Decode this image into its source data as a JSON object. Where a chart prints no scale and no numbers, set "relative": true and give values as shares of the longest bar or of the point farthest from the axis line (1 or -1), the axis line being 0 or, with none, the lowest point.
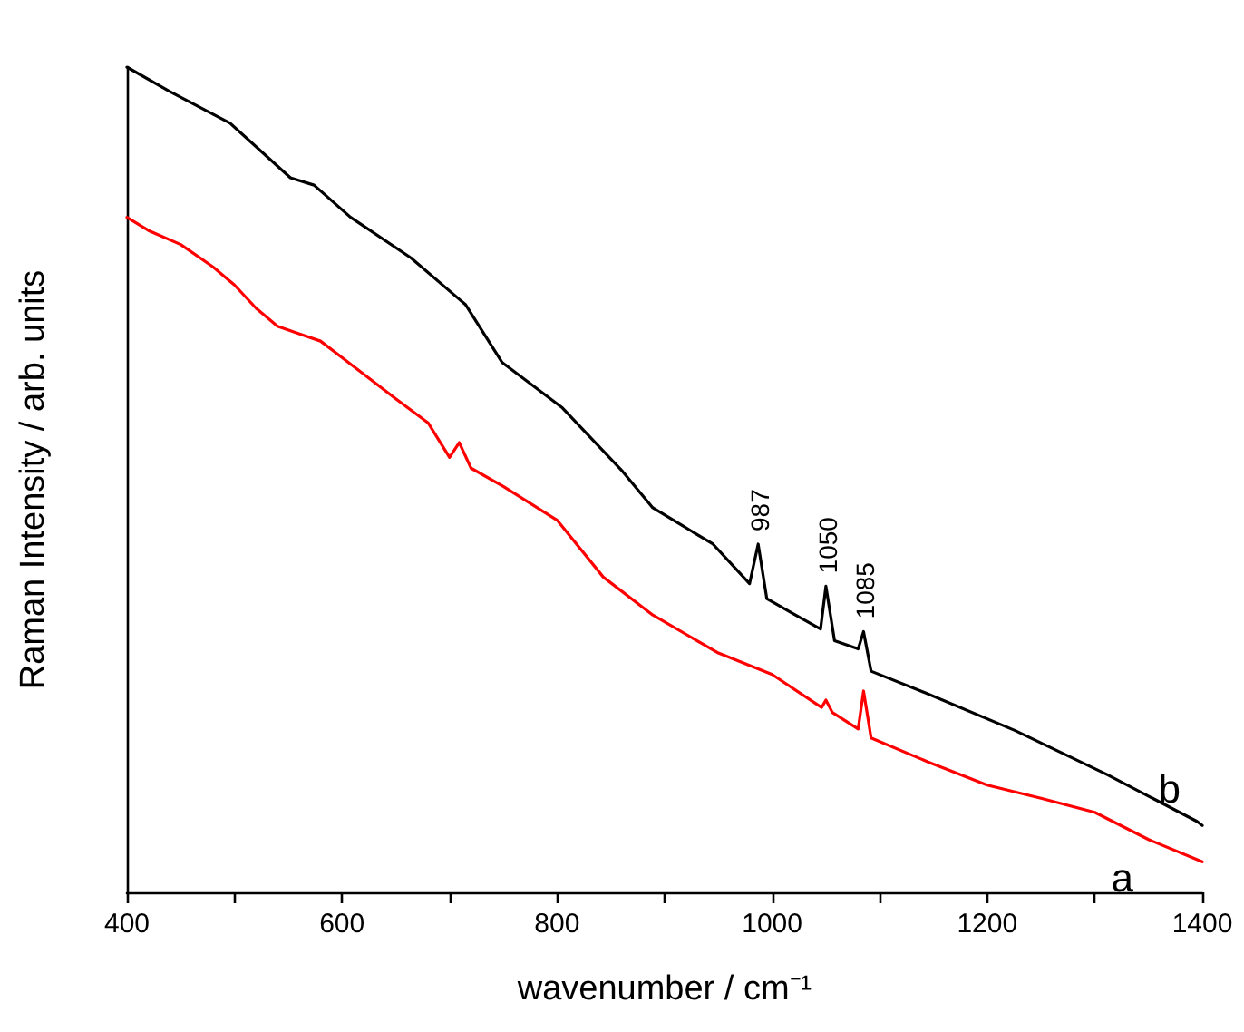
{
  "chart_data": {
    "type": "line",
    "relative": true,
    "xlabel": "wavenumber / cm⁻¹",
    "ylabel": "Raman Intensity / arb. units",
    "xlim": [
      400,
      1400
    ],
    "xticks": [
      400,
      {
        "value": 500,
        "label": null
      },
      600,
      {
        "value": 700,
        "label": null
      },
      800,
      {
        "value": 900,
        "label": null
      },
      1000,
      {
        "value": 1100,
        "label": null
      },
      1200,
      {
        "value": 1300,
        "label": null
      },
      1400
    ],
    "grid": false,
    "legend": false,
    "marker": "none",
    "line_style": "solid",
    "series": [
      {
        "name": "a",
        "color": "#ff0000",
        "x": [
          400,
          420,
          450,
          480,
          500,
          520,
          540,
          560,
          580,
          600,
          650,
          680,
          700,
          709,
          720,
          750,
          800,
          843,
          889,
          950,
          1000,
          1046,
          1050,
          1056,
          1080,
          1085,
          1092,
          1145,
          1200,
          1250,
          1300,
          1350,
          1400
        ],
        "values": [
          0.818,
          0.802,
          0.785,
          0.758,
          0.736,
          0.708,
          0.686,
          0.677,
          0.668,
          0.648,
          0.598,
          0.569,
          0.527,
          0.545,
          0.514,
          0.492,
          0.451,
          0.382,
          0.336,
          0.29,
          0.264,
          0.224,
          0.233,
          0.218,
          0.198,
          0.244,
          0.187,
          0.158,
          0.13,
          0.114,
          0.097,
          0.064,
          0.037
        ]
      },
      {
        "name": "b",
        "color": "#000000",
        "x": [
          400,
          439,
          496,
          552,
          574,
          608,
          664,
          715,
          749,
          805,
          861,
          889,
          917,
          945,
          979,
          987,
          995,
          1019,
          1045,
          1050,
          1058,
          1080,
          1085,
          1092,
          1142,
          1226,
          1311,
          1395,
          1400
        ],
        "values": [
          1.0,
          0.971,
          0.932,
          0.866,
          0.857,
          0.818,
          0.769,
          0.712,
          0.642,
          0.587,
          0.51,
          0.466,
          0.444,
          0.422,
          0.374,
          0.422,
          0.356,
          0.338,
          0.319,
          0.371,
          0.305,
          0.295,
          0.316,
          0.268,
          0.242,
          0.196,
          0.143,
          0.086,
          0.081
        ]
      }
    ],
    "annotations": [
      {
        "text": "987",
        "x": 987,
        "y": 0.422
      },
      {
        "text": "1050",
        "x": 1050,
        "y": 0.371
      },
      {
        "text": "1085",
        "x": 1085,
        "y": 0.316
      }
    ]
  }
}
